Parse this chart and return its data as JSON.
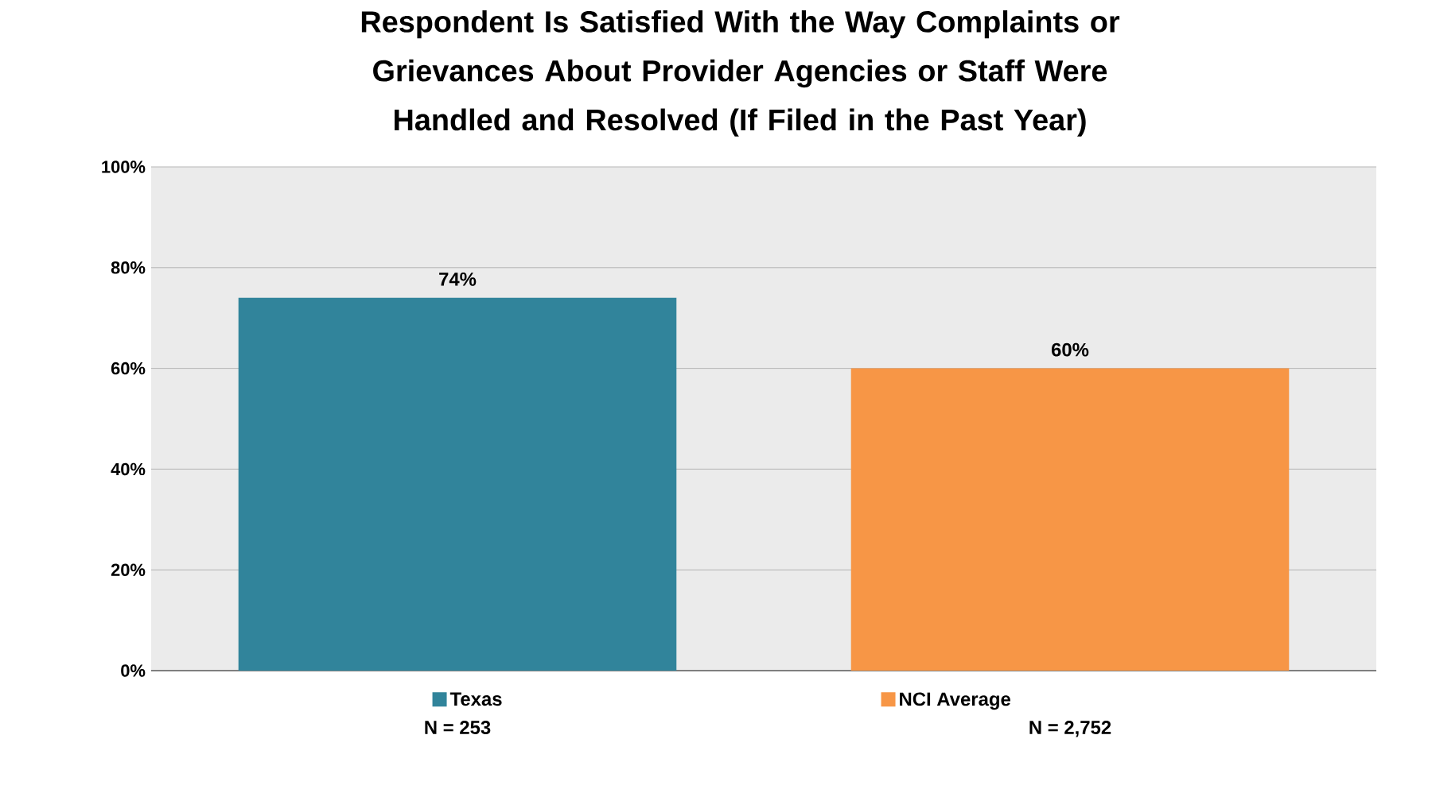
{
  "chart_data": {
    "type": "bar",
    "title": "Respondent Is Satisfied With the Way Complaints or Grievances About Provider Agencies or Staff Were Handled and Resolved (If Filed in the Past Year)",
    "categories": [
      "N = 253",
      "N = 2,752"
    ],
    "series": [
      {
        "name": "Texas",
        "color": "#31849b",
        "values": [
          74,
          null
        ],
        "value_labels": [
          "74%",
          null
        ]
      },
      {
        "name": "NCI Average",
        "color": "#f79646",
        "values": [
          null,
          60
        ],
        "value_labels": [
          null,
          "60%"
        ]
      }
    ],
    "ylim": [
      0,
      100
    ],
    "yticks": [
      {
        "value": 0,
        "label": "0%"
      },
      {
        "value": 20,
        "label": "20%"
      },
      {
        "value": 40,
        "label": "40%"
      },
      {
        "value": 60,
        "label": "60%"
      },
      {
        "value": 80,
        "label": "80%"
      },
      {
        "value": 100,
        "label": "100%"
      }
    ],
    "grid": "y",
    "legend": "bottom"
  }
}
